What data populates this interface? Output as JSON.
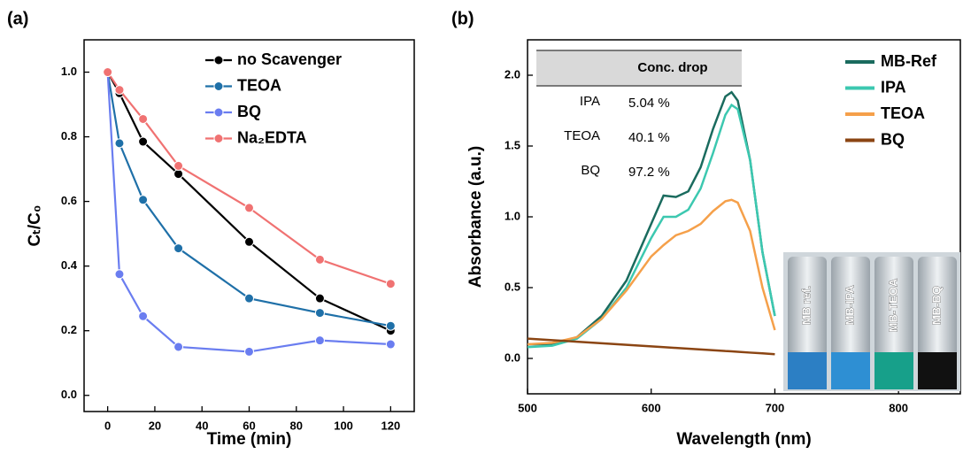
{
  "chart_data": [
    {
      "type": "line",
      "panel_label": "(a)",
      "x_label": "Time (min)",
      "y_label": "Cₜ/C₀",
      "x": [
        0,
        5,
        15,
        30,
        60,
        90,
        120
      ],
      "xlim": [
        -10,
        130
      ],
      "xticks": [
        0,
        20,
        40,
        60,
        80,
        100,
        120
      ],
      "ylim": [
        -0.05,
        1.1
      ],
      "yticks": [
        {
          "value": 0,
          "label": "0.0"
        },
        0.2,
        0.4,
        0.6,
        0.8,
        {
          "value": 1,
          "label": "1.0"
        }
      ],
      "markers": true,
      "legend": "upper right",
      "series": [
        {
          "name": "no Scavenger",
          "color": "#000000",
          "values": [
            1.0,
            0.935,
            0.785,
            0.685,
            0.475,
            0.3,
            0.2
          ]
        },
        {
          "name": "TEOA",
          "color": "#1f70a8",
          "values": [
            1.0,
            0.78,
            0.605,
            0.455,
            0.3,
            0.255,
            0.215
          ]
        },
        {
          "name": "BQ",
          "color": "#6a7df0",
          "values": [
            1.0,
            0.375,
            0.245,
            0.15,
            0.135,
            0.17,
            0.158
          ]
        },
        {
          "name": "Na₂EDTA",
          "color": "#f07272",
          "values": [
            1.0,
            0.945,
            0.855,
            0.71,
            0.58,
            0.42,
            0.345
          ]
        }
      ]
    },
    {
      "type": "line",
      "panel_label": "(b)",
      "x_label": "Wavelength (nm)",
      "y_label": "Absorbance (a.u.)",
      "x": [
        500,
        520,
        540,
        560,
        580,
        600,
        610,
        620,
        630,
        640,
        650,
        660,
        665,
        670,
        680,
        690,
        700
      ],
      "xlim": [
        500,
        850
      ],
      "xticks": [
        500,
        600,
        700,
        800
      ],
      "ylim": [
        -0.25,
        2.25
      ],
      "yticks": [
        {
          "value": 0,
          "label": "0.0"
        },
        0.5,
        {
          "value": 1,
          "label": "1.0"
        },
        1.5,
        {
          "value": 2,
          "label": "2.0"
        }
      ],
      "markers": false,
      "legend": "upper right",
      "series": [
        {
          "name": "MB-Ref",
          "color": "#1a6b5e",
          "values": [
            0.1,
            0.1,
            0.15,
            0.3,
            0.55,
            0.95,
            1.15,
            1.14,
            1.18,
            1.35,
            1.62,
            1.85,
            1.88,
            1.82,
            1.4,
            0.75,
            0.3
          ]
        },
        {
          "name": "IPA",
          "color": "#3cc8b0",
          "values": [
            0.08,
            0.09,
            0.14,
            0.28,
            0.5,
            0.85,
            1.0,
            1.0,
            1.05,
            1.2,
            1.45,
            1.72,
            1.79,
            1.76,
            1.4,
            0.75,
            0.3
          ]
        },
        {
          "name": "TEOA",
          "color": "#f5a04a",
          "values": [
            0.1,
            0.11,
            0.15,
            0.28,
            0.48,
            0.72,
            0.8,
            0.87,
            0.9,
            0.95,
            1.04,
            1.11,
            1.12,
            1.1,
            0.9,
            0.5,
            0.2
          ]
        },
        {
          "name": "BQ",
          "color": "#8b4513",
          "values": [
            0.14,
            0.129,
            0.118,
            0.107,
            0.096,
            0.085,
            0.08,
            0.074,
            0.069,
            0.063,
            0.058,
            0.052,
            0.05,
            0.047,
            0.041,
            0.036,
            0.03
          ]
        }
      ],
      "table": {
        "header": "Conc. drop",
        "rows": [
          [
            "IPA",
            "5.04 %"
          ],
          [
            "TEOA",
            "40.1 %"
          ],
          [
            "BQ",
            "97.2 %"
          ]
        ]
      },
      "inset_labels": [
        "MB ref.",
        "MB-IPA",
        "MB-TEOA",
        "MB-BQ"
      ]
    }
  ]
}
